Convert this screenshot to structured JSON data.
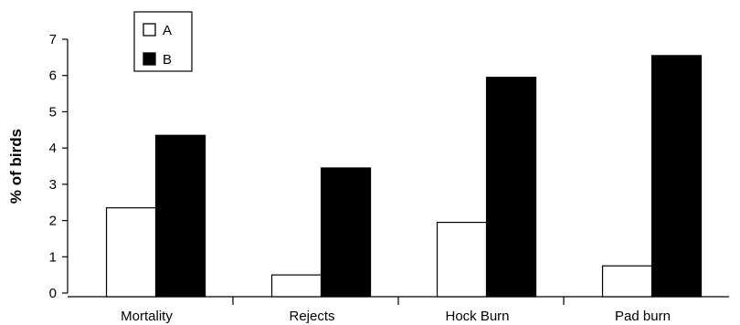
{
  "chart_data": {
    "type": "bar",
    "title": "",
    "xlabel": "",
    "ylabel": "% of birds",
    "ylim": [
      0,
      7
    ],
    "yticks": [
      0,
      1,
      2,
      3,
      4,
      5,
      6,
      7
    ],
    "grid": false,
    "legend_position": "top-left",
    "categories": [
      "Mortality",
      "Rejects",
      "Hock Burn",
      "Pad burn"
    ],
    "series": [
      {
        "name": "A",
        "values": [
          2.35,
          0.5,
          1.95,
          0.75
        ],
        "fill": "#ffffff",
        "stroke": "#000000"
      },
      {
        "name": "B",
        "values": [
          4.35,
          3.45,
          5.95,
          6.55
        ],
        "fill": "#000000",
        "stroke": "#000000"
      }
    ]
  }
}
